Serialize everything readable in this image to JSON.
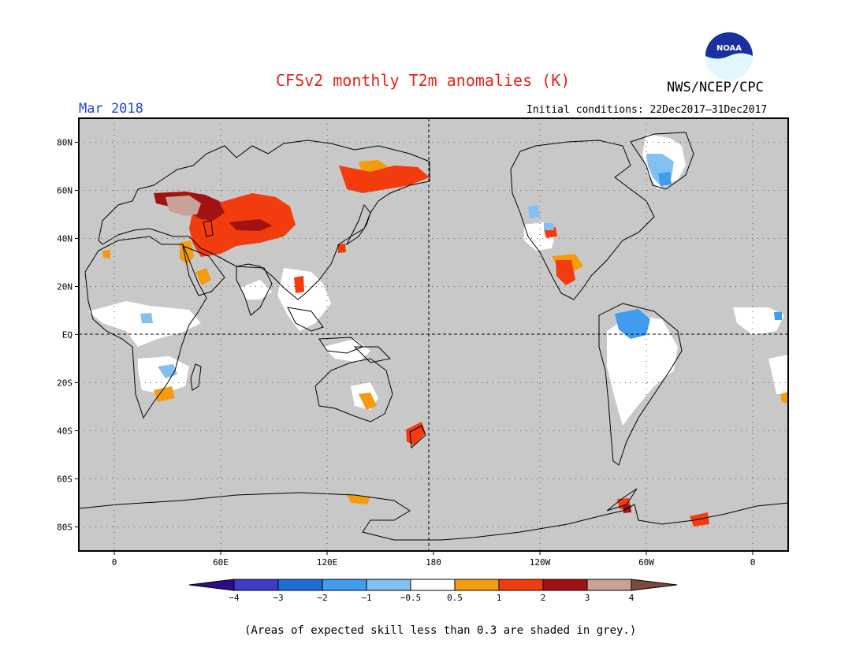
{
  "header": {
    "title": "CFSv2 monthly T2m anomalies (K)",
    "agency": "NWS/NCEP/CPC",
    "period": "Mar 2018",
    "initial_conditions": "Initial conditions: 22Dec2017–31Dec2017",
    "logo_text": "NOAA"
  },
  "map": {
    "projection": "equirectangular",
    "lon_range": [
      -20,
      380
    ],
    "lat_range": [
      -90,
      90
    ],
    "mask_color": "#c8c8c8",
    "lat_labels": [
      "80N",
      "60N",
      "40N",
      "20N",
      "EQ",
      "20S",
      "40S",
      "60S",
      "80S"
    ],
    "lon_labels": [
      "0",
      "60E",
      "120E",
      "180",
      "120W",
      "60W",
      "0"
    ]
  },
  "colorbar": {
    "colors": [
      "#2d0c8a",
      "#3d3bc7",
      "#1e6ed6",
      "#3f9df0",
      "#83c0f2",
      "#ffffff",
      "#f59c0e",
      "#f23c0d",
      "#a11212",
      "#c9a196",
      "#7a4a3a"
    ],
    "labels": [
      "−4",
      "−3",
      "−2",
      "−1",
      "−0.5",
      "0.5",
      "1",
      "2",
      "3",
      "4"
    ]
  },
  "footer": {
    "note": "(Areas of expected skill less than 0.3 are shaded in grey.)"
  }
}
